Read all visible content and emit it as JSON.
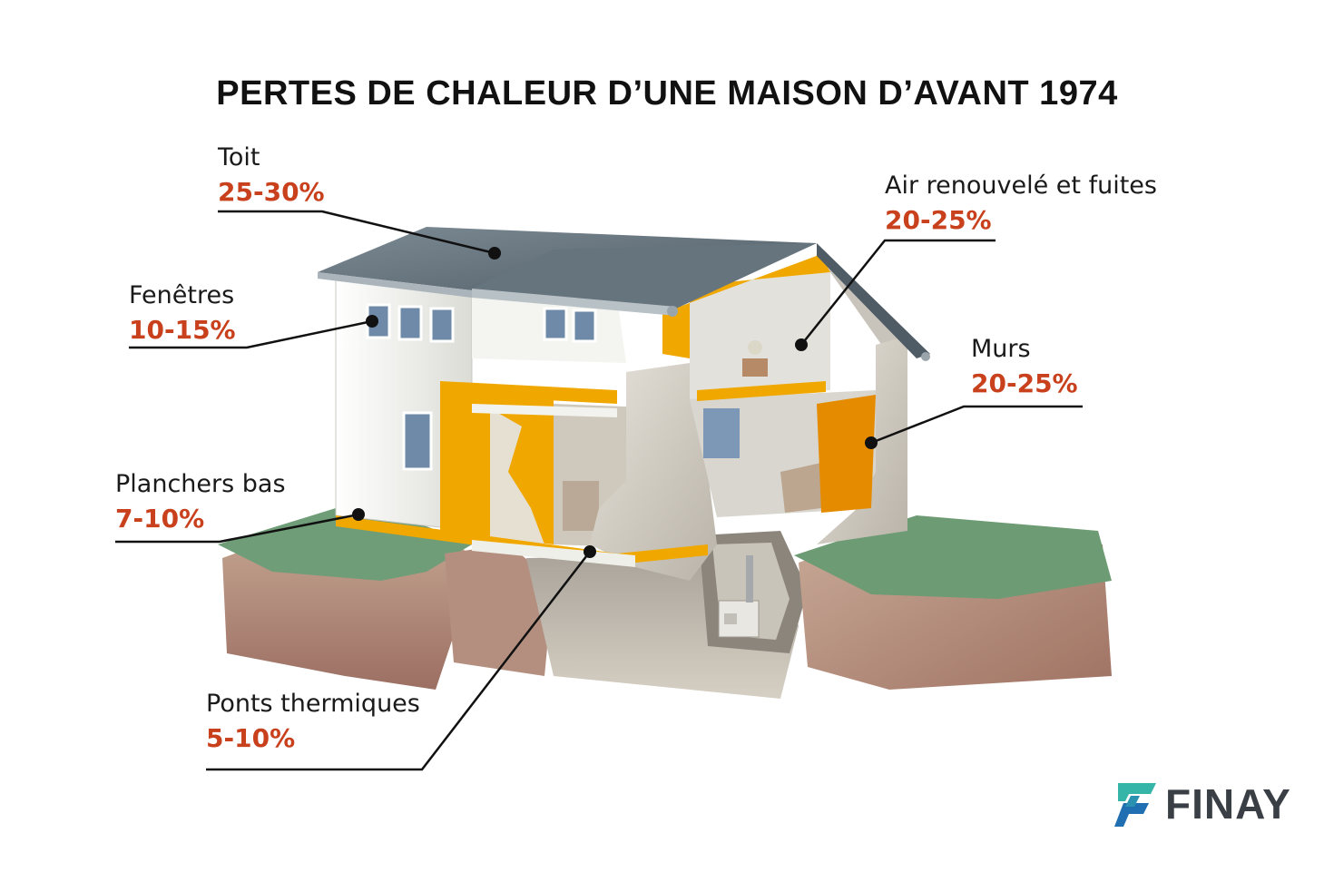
{
  "title": "PERTES DE CHALEUR D’UNE MAISON D’AVANT 1974",
  "colors": {
    "accent": "#C8401C",
    "insulation": "#F0A800",
    "roof": "#5F6E78",
    "grass": "#6A9A72",
    "soil": "#B08978",
    "brand_teal": "#34B5A8",
    "brand_blue": "#1F6FB2"
  },
  "callouts": {
    "toit": {
      "label": "Toit",
      "value": "25-30%"
    },
    "fenetres": {
      "label": "Fenêtres",
      "value": "10-15%"
    },
    "planchers": {
      "label": "Planchers bas",
      "value": "7-10%"
    },
    "ponts": {
      "label": "Ponts thermiques",
      "value": "5-10%"
    },
    "air": {
      "label": "Air renouvelé et fuites",
      "value": "20-25%"
    },
    "murs": {
      "label": "Murs",
      "value": "20-25%"
    }
  },
  "logo": {
    "text": "FINAY",
    "icon": "finay-logo-icon"
  }
}
